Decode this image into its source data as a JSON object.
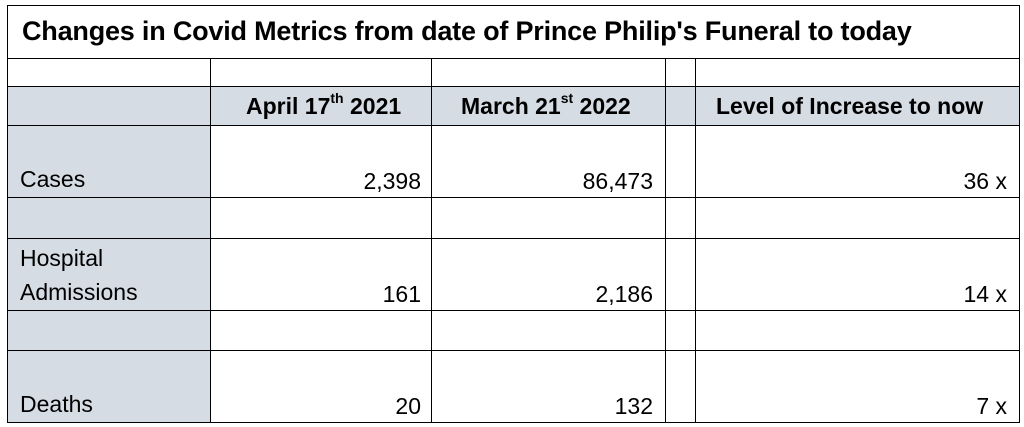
{
  "title": "Changes in Covid Metrics from date of Prince Philip's Funeral to today",
  "columns": {
    "col1_main": "April 17",
    "col1_sup": "th",
    "col1_tail": " 2021",
    "col2_main": "March 21",
    "col2_sup": "st",
    "col2_tail": " 2022",
    "col3": "Level of Increase to now"
  },
  "rows": [
    {
      "label_line1": "",
      "label_line2": "Cases",
      "apr": "2,398",
      "mar": "86,473",
      "increase": "36 x"
    },
    {
      "label_line1": "Hospital",
      "label_line2": "Admissions",
      "apr": "161",
      "mar": "2,186",
      "increase": "14 x"
    },
    {
      "label_line1": "",
      "label_line2": "Deaths",
      "apr": "20",
      "mar": "132",
      "increase": "7 x"
    }
  ],
  "colors": {
    "shade": "#d6dce4",
    "border": "#000000"
  }
}
